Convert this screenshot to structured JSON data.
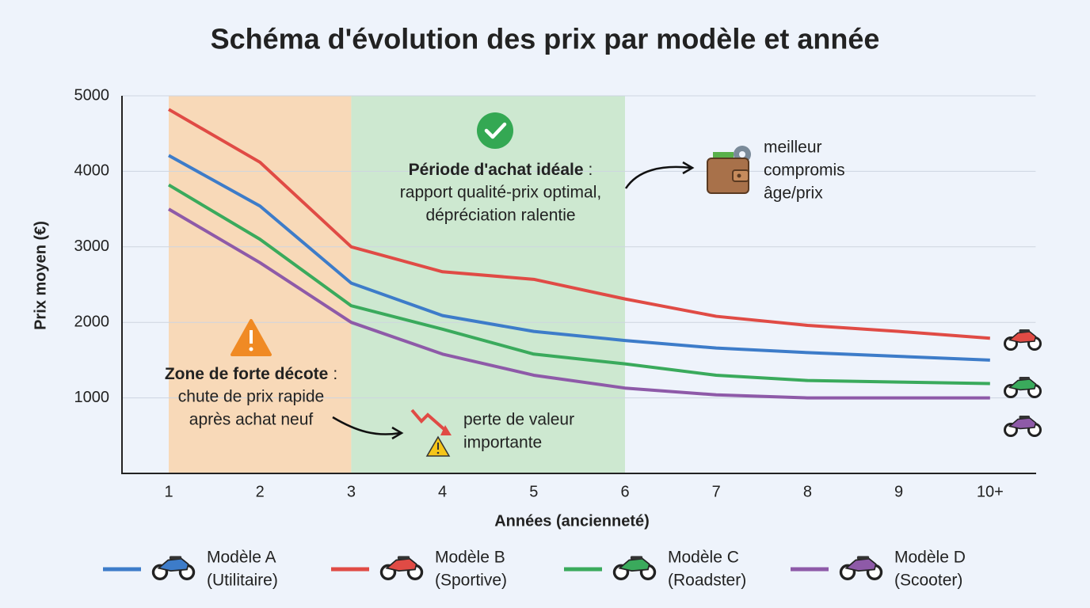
{
  "chart_data": {
    "type": "line",
    "title": "Schéma d'évolution des prix par modèle et année",
    "x_label": "Années (ancienneté)",
    "y_label": "Prix moyen (€)",
    "categories": [
      "1",
      "2",
      "3",
      "4",
      "5",
      "6",
      "7",
      "8",
      "9",
      "10+"
    ],
    "ylim": [
      0,
      5000
    ],
    "yticks": [
      1000,
      2000,
      3000,
      4000,
      5000
    ],
    "grid": true,
    "series": [
      {
        "name": "Modèle A",
        "segment": "(Utilitaire)",
        "color": "#3d7cc9",
        "values": [
          4210,
          3540,
          2520,
          2090,
          1880,
          1760,
          1660,
          1600,
          1550,
          1500
        ]
      },
      {
        "name": "Modèle B",
        "segment": "(Sportive)",
        "color": "#e04b45",
        "values": [
          4820,
          4120,
          3000,
          2670,
          2570,
          2310,
          2080,
          1960,
          1880,
          1790
        ]
      },
      {
        "name": "Modèle C",
        "segment": "(Roadster)",
        "color": "#3aaa5c",
        "values": [
          3820,
          3100,
          2220,
          1910,
          1580,
          1450,
          1300,
          1230,
          1210,
          1190
        ]
      },
      {
        "name": "Modèle D",
        "segment": "(Scooter)",
        "color": "#8e5aa8",
        "values": [
          3500,
          2790,
          2000,
          1580,
          1300,
          1130,
          1040,
          1000,
          1000,
          1000
        ]
      }
    ],
    "zones": [
      {
        "from": "1",
        "to": "3",
        "color": "#f8d9b8",
        "heading": "Zone de forte décote",
        "heading_end": ":",
        "lines": [
          "chute de prix rapide",
          "après achat neuf"
        ]
      },
      {
        "from": "3",
        "to": "6",
        "color": "#cde8d0",
        "heading": "Période d'achat idéale",
        "heading_end": ":",
        "lines": [
          "rapport qualité-prix optimal,",
          "dépréciation ralentie"
        ]
      }
    ],
    "annotations": [
      {
        "lines": [
          "perte de valeur",
          "importante"
        ]
      },
      {
        "lines": [
          "meilleur",
          "compromis",
          "âge/prix"
        ]
      }
    ]
  }
}
